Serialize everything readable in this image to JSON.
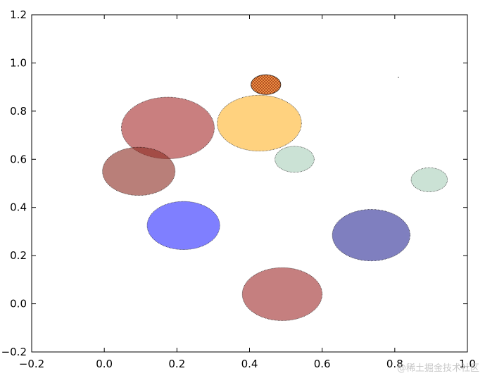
{
  "chart_data": {
    "type": "scatter",
    "title": "",
    "xlabel": "",
    "ylabel": "",
    "xlim": [
      -0.2,
      1.0
    ],
    "ylim": [
      -0.2,
      1.2
    ],
    "grid": false,
    "x_ticks": [
      "−0.2",
      "0.0",
      "0.2",
      "0.4",
      "0.6",
      "0.8",
      "1.0"
    ],
    "y_ticks": [
      "−0.2",
      "0.0",
      "0.2",
      "0.4",
      "0.6",
      "0.8",
      "1.0",
      "1.2"
    ],
    "x_tick_values": [
      -0.2,
      0.0,
      0.2,
      0.4,
      0.6,
      0.8,
      1.0
    ],
    "y_tick_values": [
      -0.2,
      0.0,
      0.2,
      0.4,
      0.6,
      0.8,
      1.0,
      1.2
    ],
    "circles": [
      {
        "x": 0.175,
        "y": 0.73,
        "r": 0.128,
        "color": "#a52a2a",
        "opacity": 0.6,
        "hatch": false
      },
      {
        "x": 0.095,
        "y": 0.55,
        "r": 0.1,
        "color": "#8b2a1f",
        "opacity": 0.6,
        "hatch": false
      },
      {
        "x": 0.218,
        "y": 0.325,
        "r": 0.1,
        "color": "#0000ff",
        "opacity": 0.5,
        "hatch": false
      },
      {
        "x": 0.427,
        "y": 0.75,
        "r": 0.116,
        "color": "#ffa500",
        "opacity": 0.5,
        "hatch": false
      },
      {
        "x": 0.445,
        "y": 0.91,
        "r": 0.041,
        "color": "#ff7f0e",
        "opacity": 0.6,
        "hatch": true
      },
      {
        "x": 0.524,
        "y": 0.6,
        "r": 0.054,
        "color": "#2e8b57",
        "opacity": 0.25,
        "hatch": false
      },
      {
        "x": 0.895,
        "y": 0.515,
        "r": 0.05,
        "color": "#2e8b57",
        "opacity": 0.25,
        "hatch": false
      },
      {
        "x": 0.735,
        "y": 0.285,
        "r": 0.107,
        "color": "#000080",
        "opacity": 0.5,
        "hatch": false
      },
      {
        "x": 0.49,
        "y": 0.04,
        "r": 0.11,
        "color": "#8b0000",
        "opacity": 0.5,
        "hatch": false
      }
    ],
    "points": [
      {
        "x": 0.81,
        "y": 0.94
      }
    ]
  },
  "watermark": "@稀土掘金技术社区"
}
